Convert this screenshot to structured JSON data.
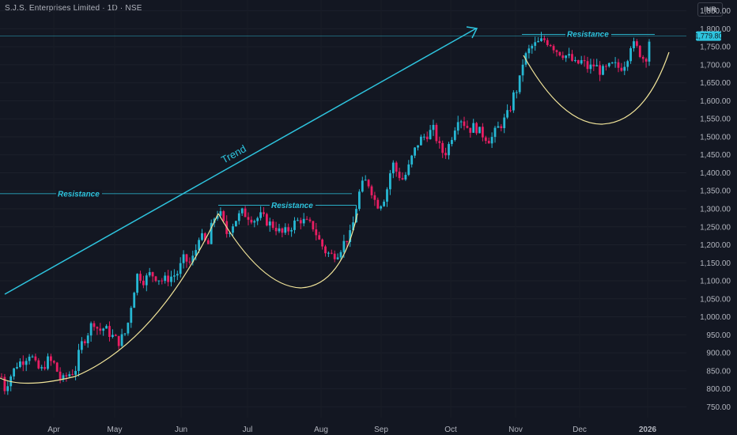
{
  "header": {
    "title": "S.J.S. Enterprises Limited · 1D · NSE",
    "currency": "INR"
  },
  "colors": {
    "background": "#131722",
    "up": "#26b7d3",
    "down": "#e91e63",
    "annotation": "#2ec4de",
    "cup_curve": "#f2e59a"
  },
  "chart_data": {
    "type": "candlestick",
    "x_labels": [
      "Apr",
      "May",
      "Jun",
      "Jul",
      "Aug",
      "Sep",
      "Oct",
      "Nov",
      "Dec",
      "2026"
    ],
    "y_ticks": [
      750,
      800,
      850,
      900,
      950,
      1000,
      1050,
      1100,
      1150,
      1200,
      1250,
      1300,
      1350,
      1400,
      1450,
      1500,
      1550,
      1600,
      1650,
      1700,
      1750,
      1800,
      1850
    ],
    "y_tick_labels": [
      "750.00",
      "800.00",
      "850.00",
      "900.00",
      "950.00",
      "1,000.00",
      "1,050.00",
      "1,100.00",
      "1,150.00",
      "1,200.00",
      "1,250.00",
      "1,300.00",
      "1,350.00",
      "1,400.00",
      "1,450.00",
      "1,500.00",
      "1,550.00",
      "1,600.00",
      "1,650.00",
      "1,700.00",
      "1,750.00",
      "1,800.00",
      "1,850.00"
    ],
    "ylim": [
      720,
      1880
    ],
    "last_price": 1779.8,
    "last_price_label": "1,779.80",
    "annotations": {
      "trend_label": "Trend",
      "resistance_label": "Resistance",
      "resistance_levels": [
        1342,
        1310,
        1780
      ]
    },
    "series_path": [
      [
        0,
        850
      ],
      [
        6,
        800
      ],
      [
        12,
        830
      ],
      [
        22,
        870
      ],
      [
        30,
        880
      ],
      [
        38,
        900
      ],
      [
        46,
        860
      ],
      [
        52,
        850
      ],
      [
        60,
        880
      ],
      [
        68,
        870
      ],
      [
        78,
        820
      ],
      [
        86,
        840
      ],
      [
        95,
        850
      ],
      [
        102,
        920
      ],
      [
        110,
        950
      ],
      [
        118,
        990
      ],
      [
        125,
        960
      ],
      [
        132,
        970
      ],
      [
        140,
        950
      ],
      [
        150,
        930
      ],
      [
        160,
        960
      ],
      [
        168,
        1060
      ],
      [
        174,
        1120
      ],
      [
        182,
        1100
      ],
      [
        190,
        1120
      ],
      [
        198,
        1110
      ],
      [
        206,
        1100
      ],
      [
        215,
        1110
      ],
      [
        224,
        1120
      ],
      [
        232,
        1160
      ],
      [
        240,
        1150
      ],
      [
        246,
        1170
      ],
      [
        252,
        1230
      ],
      [
        258,
        1210
      ],
      [
        264,
        1200
      ],
      [
        268,
        1260
      ],
      [
        274,
        1290
      ],
      [
        280,
        1280
      ],
      [
        286,
        1230
      ],
      [
        292,
        1250
      ],
      [
        298,
        1270
      ],
      [
        306,
        1290
      ],
      [
        314,
        1280
      ],
      [
        322,
        1270
      ],
      [
        330,
        1280
      ],
      [
        340,
        1260
      ],
      [
        348,
        1250
      ],
      [
        356,
        1230
      ],
      [
        364,
        1240
      ],
      [
        372,
        1260
      ],
      [
        380,
        1270
      ],
      [
        388,
        1260
      ],
      [
        396,
        1250
      ],
      [
        404,
        1210
      ],
      [
        412,
        1180
      ],
      [
        420,
        1170
      ],
      [
        428,
        1180
      ],
      [
        436,
        1210
      ],
      [
        444,
        1230
      ],
      [
        450,
        1300
      ],
      [
        456,
        1360
      ],
      [
        464,
        1380
      ],
      [
        470,
        1350
      ],
      [
        476,
        1310
      ],
      [
        484,
        1320
      ],
      [
        490,
        1360
      ],
      [
        496,
        1430
      ],
      [
        502,
        1400
      ],
      [
        510,
        1380
      ],
      [
        516,
        1410
      ],
      [
        522,
        1450
      ],
      [
        530,
        1490
      ],
      [
        536,
        1500
      ],
      [
        542,
        1510
      ],
      [
        548,
        1520
      ],
      [
        556,
        1470
      ],
      [
        562,
        1450
      ],
      [
        568,
        1480
      ],
      [
        574,
        1520
      ],
      [
        580,
        1560
      ],
      [
        586,
        1540
      ],
      [
        594,
        1520
      ],
      [
        600,
        1530
      ],
      [
        608,
        1510
      ],
      [
        614,
        1500
      ],
      [
        620,
        1490
      ],
      [
        628,
        1520
      ],
      [
        636,
        1540
      ],
      [
        644,
        1570
      ],
      [
        650,
        1620
      ],
      [
        656,
        1640
      ],
      [
        660,
        1700
      ],
      [
        666,
        1730
      ],
      [
        672,
        1750
      ],
      [
        680,
        1760
      ],
      [
        688,
        1770
      ],
      [
        696,
        1760
      ],
      [
        704,
        1740
      ],
      [
        712,
        1730
      ],
      [
        720,
        1720
      ],
      [
        728,
        1700
      ],
      [
        736,
        1710
      ],
      [
        744,
        1690
      ],
      [
        752,
        1700
      ],
      [
        760,
        1680
      ],
      [
        768,
        1690
      ],
      [
        776,
        1700
      ],
      [
        784,
        1690
      ],
      [
        792,
        1710
      ],
      [
        798,
        1760
      ],
      [
        804,
        1750
      ],
      [
        810,
        1730
      ],
      [
        816,
        1710
      ],
      [
        822,
        1780
      ]
    ]
  }
}
